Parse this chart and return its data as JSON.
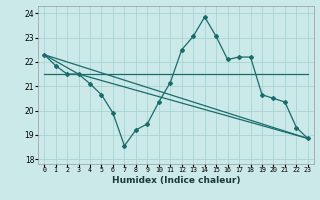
{
  "xlabel": "Humidex (Indice chaleur)",
  "xlim": [
    -0.5,
    23.5
  ],
  "ylim": [
    17.8,
    24.3
  ],
  "yticks": [
    18,
    19,
    20,
    21,
    22,
    23,
    24
  ],
  "xticks": [
    0,
    1,
    2,
    3,
    4,
    5,
    6,
    7,
    8,
    9,
    10,
    11,
    12,
    13,
    14,
    15,
    16,
    17,
    18,
    19,
    20,
    21,
    22,
    23
  ],
  "bg_color": "#cce9e9",
  "grid_color": "#aad4d4",
  "line_color": "#1a6b6b",
  "line1_x": [
    0,
    1,
    2,
    3,
    4,
    5,
    6,
    7,
    8,
    9,
    10,
    11,
    12,
    13,
    14,
    15,
    16,
    17,
    18,
    19,
    20,
    21,
    22,
    23
  ],
  "line1_y": [
    22.3,
    21.85,
    21.5,
    21.5,
    21.1,
    20.65,
    19.9,
    18.55,
    19.2,
    19.45,
    20.35,
    21.15,
    22.5,
    23.05,
    23.85,
    23.05,
    22.1,
    22.2,
    22.2,
    20.65,
    20.5,
    20.35,
    19.3,
    18.85
  ],
  "line2_x": [
    0,
    23
  ],
  "line2_y": [
    21.5,
    21.5
  ],
  "line3_x": [
    0,
    23
  ],
  "line3_y": [
    22.3,
    18.85
  ],
  "line4_x": [
    0,
    3,
    23
  ],
  "line4_y": [
    22.3,
    21.5,
    18.85
  ]
}
